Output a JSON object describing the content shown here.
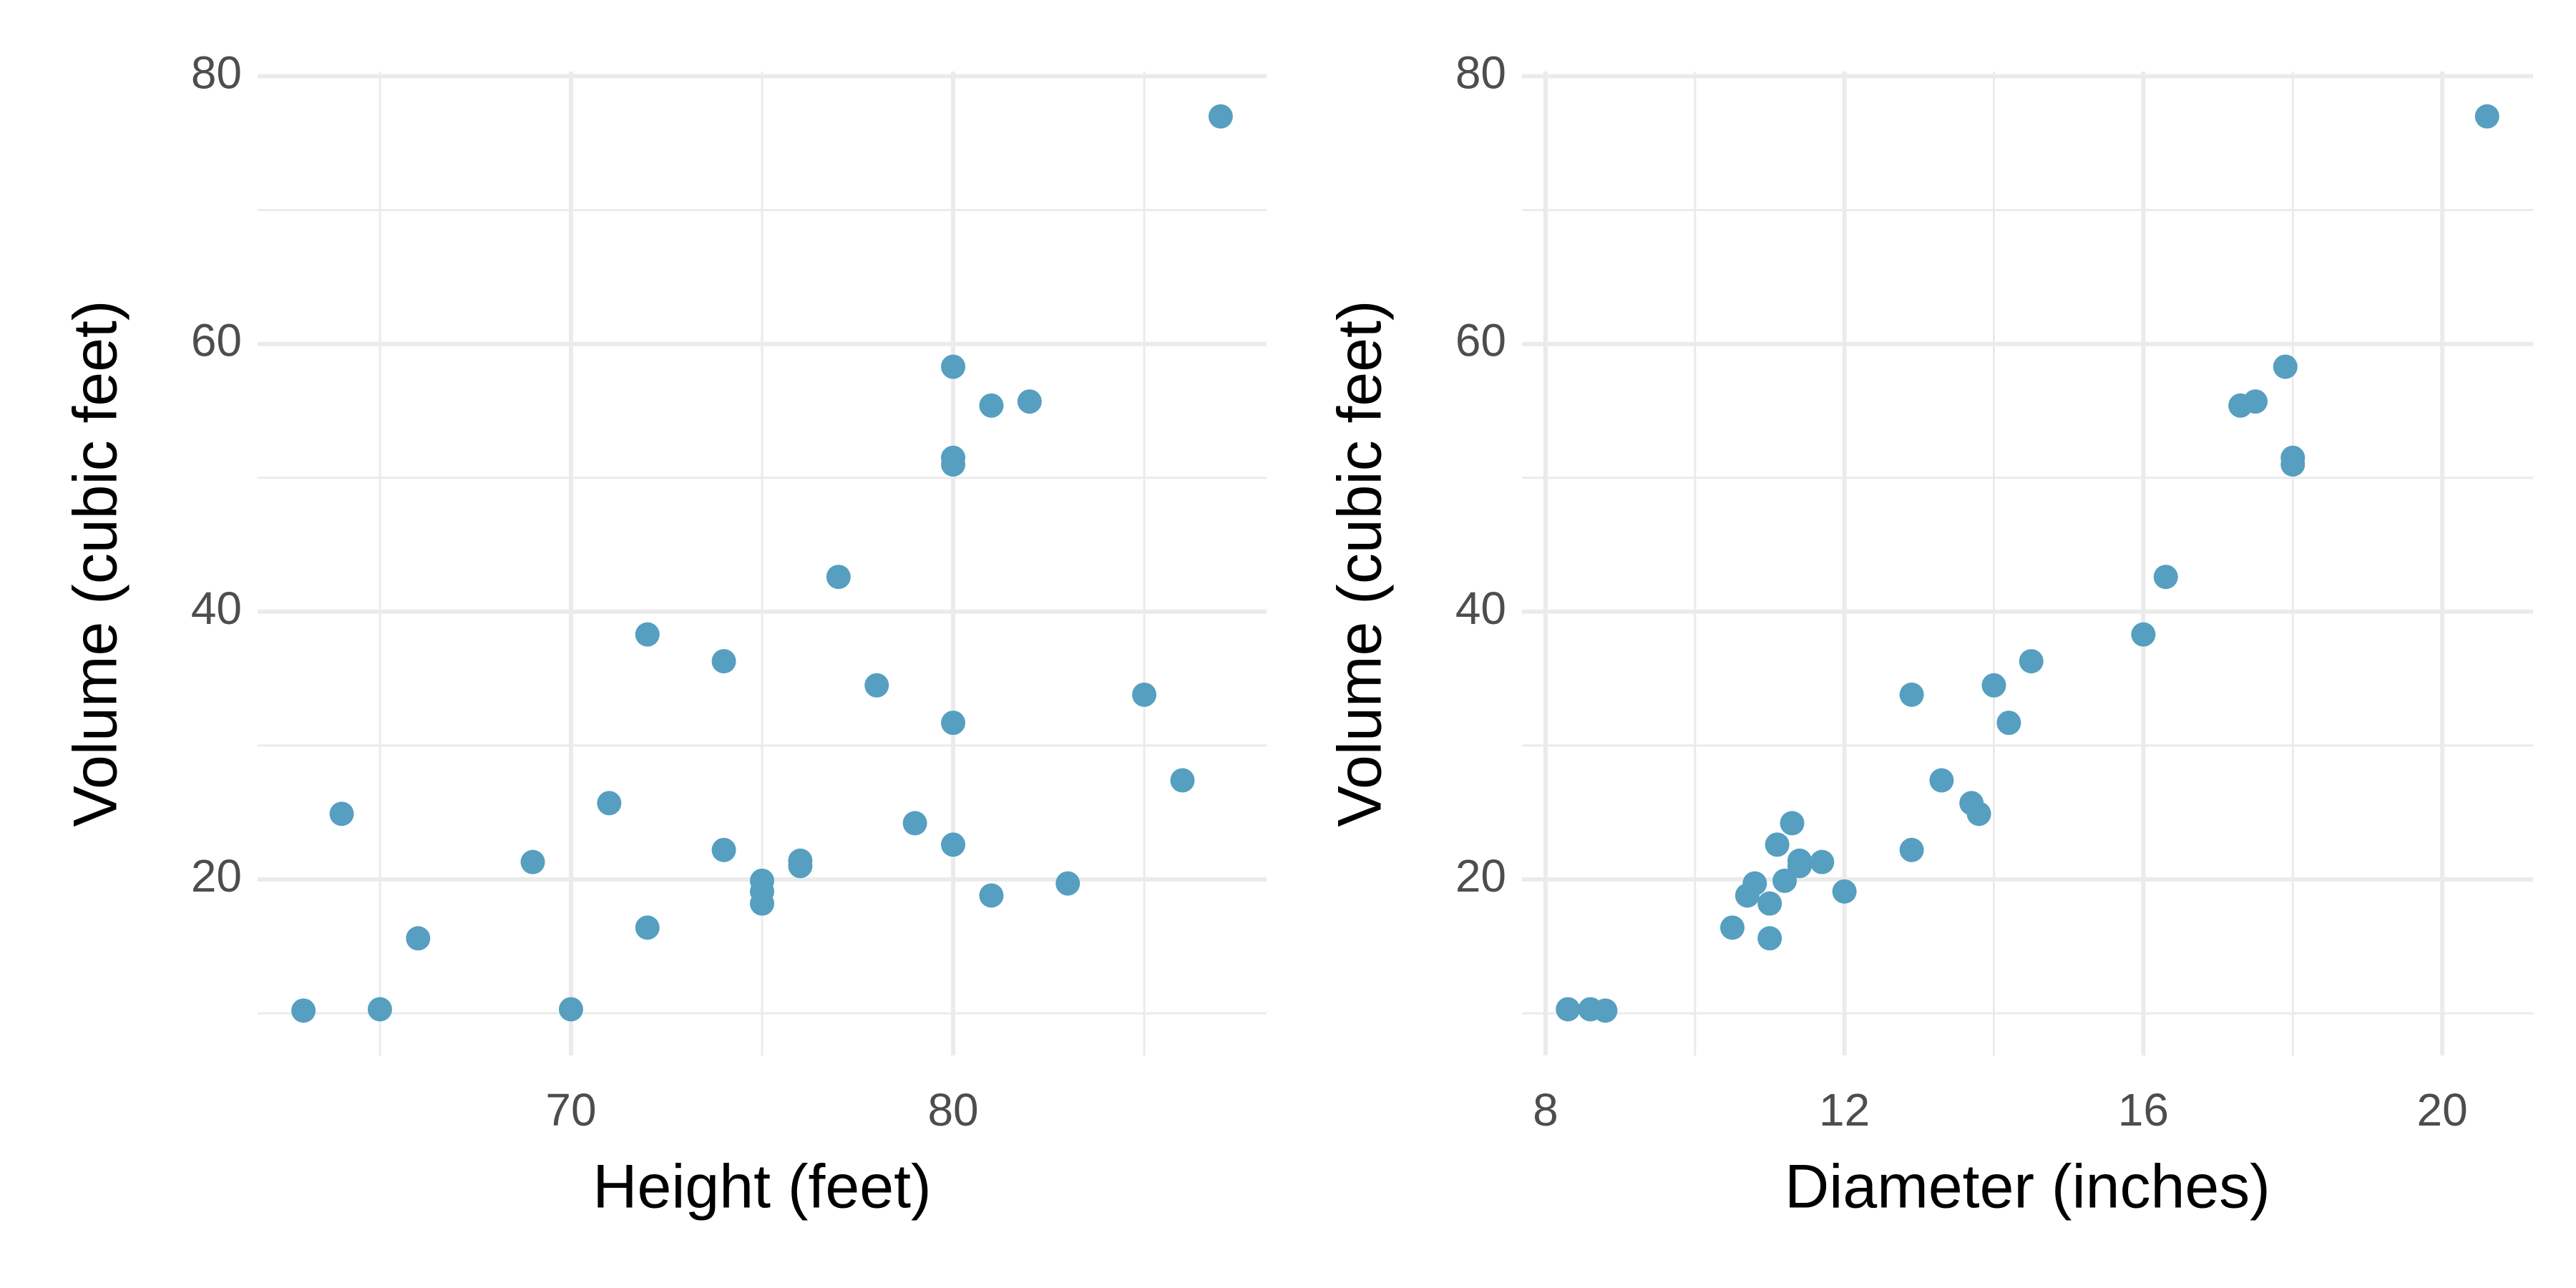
{
  "chart_data": [
    {
      "type": "scatter",
      "color": "#569fc0",
      "grid": true,
      "xlabel": "Height (feet)",
      "ylabel": "Volume (cubic feet)",
      "x": [
        70,
        65,
        63,
        72,
        81,
        83,
        66,
        75,
        80,
        75,
        79,
        76,
        76,
        69,
        75,
        74,
        85,
        86,
        71,
        64,
        78,
        80,
        74,
        72,
        77,
        81,
        82,
        80,
        80,
        80,
        87
      ],
      "values": [
        10.3,
        10.3,
        10.2,
        16.4,
        18.8,
        19.7,
        15.6,
        18.2,
        22.6,
        19.9,
        24.2,
        21.0,
        21.4,
        21.3,
        19.1,
        22.2,
        33.8,
        27.4,
        25.7,
        24.9,
        34.5,
        31.7,
        36.3,
        38.3,
        42.6,
        55.4,
        55.7,
        58.3,
        51.5,
        51.0,
        77.0
      ],
      "xlim": [
        61.8,
        88.2
      ],
      "xticks": [
        70,
        80
      ],
      "ylim": [
        6.85,
        80.35
      ],
      "yticks": [
        20,
        40,
        60,
        80
      ]
    },
    {
      "type": "scatter",
      "color": "#569fc0",
      "grid": true,
      "xlabel": "Diameter (inches)",
      "ylabel": "Volume (cubic feet)",
      "x": [
        8.3,
        8.6,
        8.8,
        10.5,
        10.7,
        10.8,
        11.0,
        11.0,
        11.1,
        11.2,
        11.3,
        11.4,
        11.4,
        11.7,
        12.0,
        12.9,
        12.9,
        13.3,
        13.7,
        13.8,
        14.0,
        14.2,
        14.5,
        16.0,
        16.3,
        17.3,
        17.5,
        17.9,
        18.0,
        18.0,
        20.6
      ],
      "values": [
        10.3,
        10.3,
        10.2,
        16.4,
        18.8,
        19.7,
        15.6,
        18.2,
        22.6,
        19.9,
        24.2,
        21.0,
        21.4,
        21.3,
        19.1,
        22.2,
        33.8,
        27.4,
        25.7,
        24.9,
        34.5,
        31.7,
        36.3,
        38.3,
        42.6,
        55.4,
        55.7,
        58.3,
        51.5,
        51.0,
        77.0
      ],
      "xlim": [
        7.685,
        21.215
      ],
      "xticks": [
        8,
        12,
        16,
        20
      ],
      "ylim": [
        6.85,
        80.35
      ],
      "yticks": [
        20,
        40,
        60,
        80
      ]
    }
  ]
}
